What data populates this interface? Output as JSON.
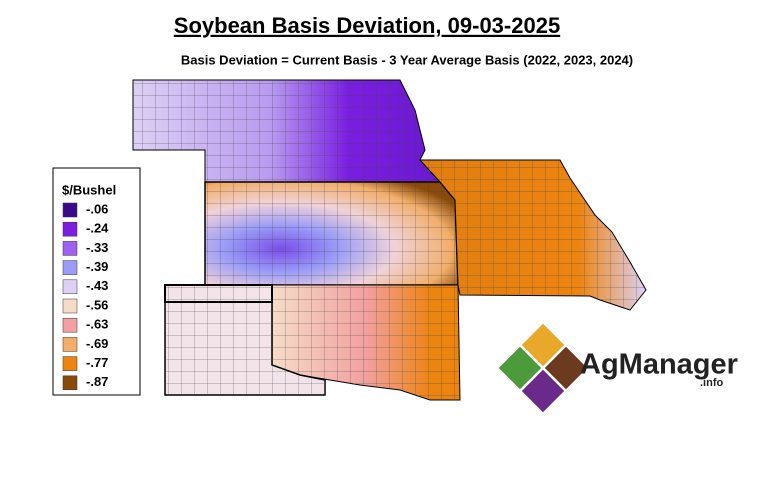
{
  "title": "Soybean Basis Deviation, 09-03-2025",
  "subtitle": "Basis Deviation = Current Basis - 3 Year Average Basis (2022, 2023, 2024)",
  "legend": {
    "title": "$/Bushel",
    "items": [
      {
        "label": "-.06",
        "color": "#3a0a8a"
      },
      {
        "label": "-.24",
        "color": "#7a1fe0"
      },
      {
        "label": "-.33",
        "color": "#a060f0"
      },
      {
        "label": "-.39",
        "color": "#9a9cf8"
      },
      {
        "label": "-.43",
        "color": "#ddd0f4"
      },
      {
        "label": "-.56",
        "color": "#f6dcc8"
      },
      {
        "label": "-.63",
        "color": "#f2a0a0"
      },
      {
        "label": "-.69",
        "color": "#f2ae6a"
      },
      {
        "label": "-.77",
        "color": "#ec8410"
      },
      {
        "label": "-.87",
        "color": "#8a4a0a"
      }
    ]
  },
  "logo": {
    "name": "AgManager",
    "suffix": ".info"
  }
}
